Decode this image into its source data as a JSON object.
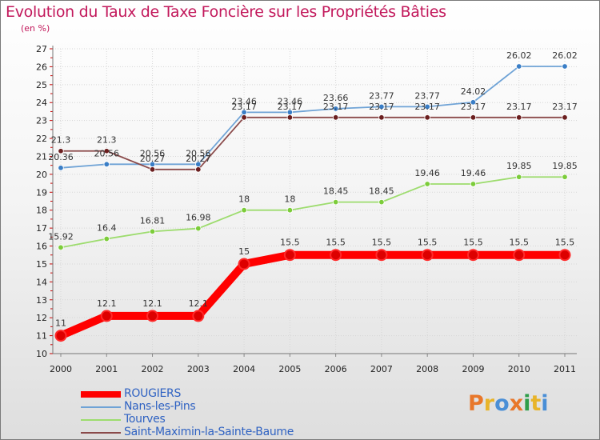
{
  "title": "Evolution du Taux de Taxe Foncière sur les Propriétés Bâties",
  "subtitle": "(en %)",
  "logo": {
    "text": "Proxiti",
    "colors": [
      "#e8772a",
      "#e8b42a",
      "#4a8fd6",
      "#e8772a",
      "#2f9e4a",
      "#e8b42a",
      "#4a8fd6"
    ]
  },
  "chart_data": {
    "type": "line",
    "title": "Evolution du Taux de Taxe Foncière sur les Propriétés Bâties",
    "ylabel": "(en %)",
    "xlabel": "",
    "ylim": [
      10,
      27
    ],
    "yticks": [
      "10",
      "11",
      "12",
      "13",
      "14",
      "15",
      "16",
      "17",
      "18",
      "19",
      "20",
      "21",
      "22",
      "23",
      "24",
      "25",
      "26",
      "27"
    ],
    "categories": [
      "2000",
      "2001",
      "2002",
      "2003",
      "2004",
      "2005",
      "2006",
      "2007",
      "2008",
      "2009",
      "2010",
      "2011"
    ],
    "legend_position": "bottom-left",
    "series": [
      {
        "name": "ROUGIERS",
        "color": "#ff0000",
        "marker": "#cc0000",
        "values": [
          11,
          12.1,
          12.1,
          12.1,
          15,
          15.5,
          15.5,
          15.5,
          15.5,
          15.5,
          15.5,
          15.5
        ],
        "labels": [
          "11",
          "12.1",
          "12.1",
          "12.1",
          "15",
          "15.5",
          "15.5",
          "15.5",
          "15.5",
          "15.5",
          "15.5",
          "15.5"
        ]
      },
      {
        "name": "Nans-les-Pins",
        "color": "#6fa3d6",
        "marker": "#3a7ec6",
        "values": [
          20.36,
          20.56,
          20.56,
          20.56,
          23.46,
          23.46,
          23.66,
          23.77,
          23.77,
          24.02,
          26.02,
          26.02
        ],
        "labels": [
          "20.36",
          "20.56",
          "20.56",
          "20.56",
          "23.46",
          "23.46",
          "23.66",
          "23.77",
          "23.77",
          "24.02",
          "26.02",
          "26.02"
        ]
      },
      {
        "name": "Tourves",
        "color": "#9ddc6e",
        "marker": "#7ccc3a",
        "values": [
          15.92,
          16.4,
          16.81,
          16.98,
          18,
          18,
          18.45,
          18.45,
          19.46,
          19.46,
          19.85,
          19.85
        ],
        "labels": [
          "15.92",
          "16.4",
          "16.81",
          "16.98",
          "18",
          "18",
          "18.45",
          "18.45",
          "19.46",
          "19.46",
          "19.85",
          "19.85"
        ]
      },
      {
        "name": "Saint-Maximin-la-Sainte-Baume",
        "color": "#8a4a4a",
        "marker": "#6b1f1f",
        "values": [
          21.3,
          21.3,
          20.27,
          20.27,
          23.17,
          23.17,
          23.17,
          23.17,
          23.17,
          23.17,
          23.17,
          23.17
        ],
        "labels": [
          "21.3",
          "21.3",
          "20.27",
          "20.27",
          "23.17",
          "23.17",
          "23.17",
          "23.17",
          "23.17",
          "23.17",
          "23.17",
          "23.17"
        ]
      }
    ]
  }
}
